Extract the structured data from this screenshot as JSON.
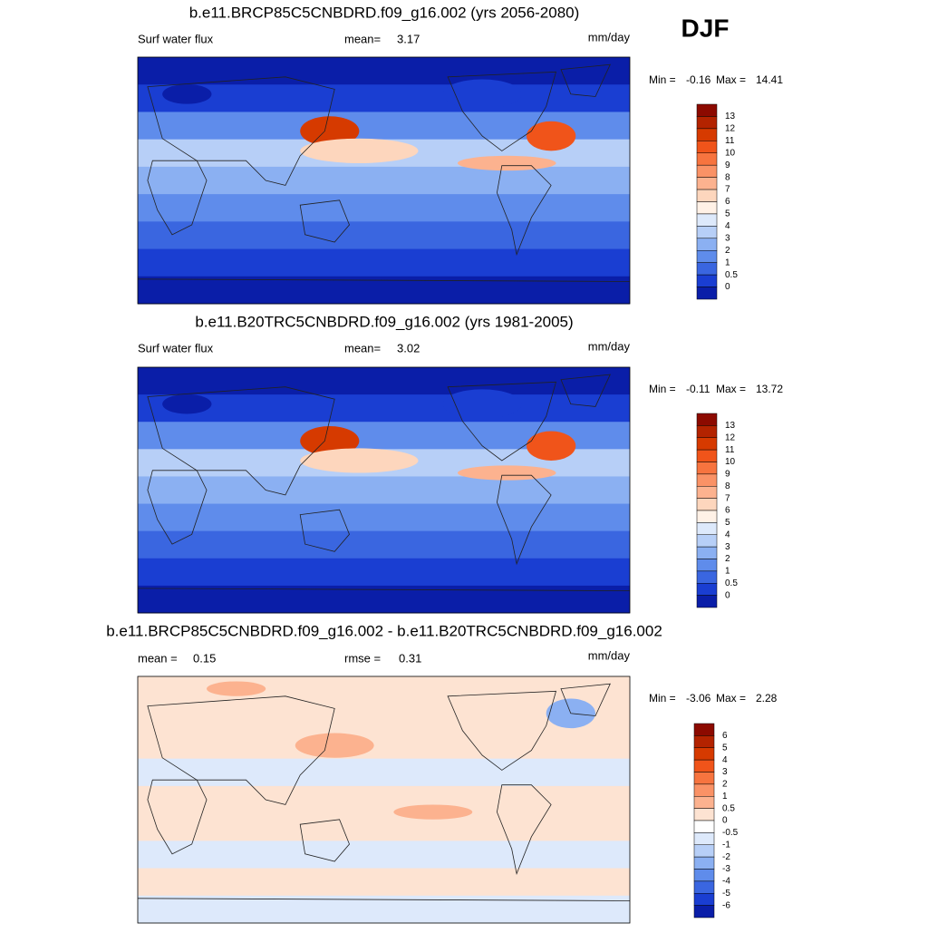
{
  "header": {
    "season": "DJF"
  },
  "panels": [
    {
      "title": "b.e11.BRCP85C5CNBDRD.f09_g16.002 (yrs 2056-2080)",
      "left_label": "Surf water flux",
      "stat_label": "mean=",
      "stat_value": 3.17,
      "units": "mm/day",
      "min_label": "Min =",
      "min": -0.16,
      "max_label": "Max =",
      "max": 14.41,
      "colorbar": {
        "levels": [
          13,
          12,
          11,
          10,
          9,
          8,
          7,
          6,
          5,
          4,
          3,
          2,
          1,
          0.5,
          0
        ],
        "colors": [
          "#8c0a00",
          "#b32300",
          "#d63a00",
          "#f0541a",
          "#f7743f",
          "#fa9266",
          "#fcb28f",
          "#fdd6bd",
          "#fff1e6",
          "#dde9fb",
          "#b7cff7",
          "#8bb0f2",
          "#5f8ceb",
          "#3a66e0",
          "#1a3ed2",
          "#0a1ea8",
          "#00008c"
        ]
      }
    },
    {
      "title": "b.e11.B20TRC5CNBDRD.f09_g16.002 (yrs 1981-2005)",
      "left_label": "Surf water flux",
      "stat_label": "mean=",
      "stat_value": 3.02,
      "units": "mm/day",
      "min_label": "Min =",
      "min": -0.11,
      "max_label": "Max =",
      "max": 13.72,
      "colorbar": {
        "levels": [
          13,
          12,
          11,
          10,
          9,
          8,
          7,
          6,
          5,
          4,
          3,
          2,
          1,
          0.5,
          0
        ],
        "colors": [
          "#8c0a00",
          "#b32300",
          "#d63a00",
          "#f0541a",
          "#f7743f",
          "#fa9266",
          "#fcb28f",
          "#fdd6bd",
          "#fff1e6",
          "#dde9fb",
          "#b7cff7",
          "#8bb0f2",
          "#5f8ceb",
          "#3a66e0",
          "#1a3ed2",
          "#0a1ea8",
          "#00008c"
        ]
      }
    },
    {
      "title": "b.e11.BRCP85C5CNBDRD.f09_g16.002 - b.e11.B20TRC5CNBDRD.f09_g16.002",
      "left_label": "mean =",
      "left_value": 0.15,
      "stat_label": "rmse =",
      "stat_value": 0.31,
      "units": "mm/day",
      "min_label": "Min =",
      "min": -3.06,
      "max_label": "Max =",
      "max": 2.28,
      "colorbar": {
        "levels": [
          6,
          5,
          4,
          3,
          2,
          1,
          0.5,
          0,
          -0.5,
          -1,
          -2,
          -3,
          -4,
          -5,
          -6
        ],
        "colors": [
          "#8c0a00",
          "#b32300",
          "#d63a00",
          "#f0541a",
          "#f7743f",
          "#fa9266",
          "#fcb28f",
          "#fde3d2",
          "#ffffff",
          "#dde9fb",
          "#b7cff7",
          "#8bb0f2",
          "#5f8ceb",
          "#3a66e0",
          "#1a3ed2",
          "#0a1ea8",
          "#00008c"
        ]
      }
    }
  ]
}
